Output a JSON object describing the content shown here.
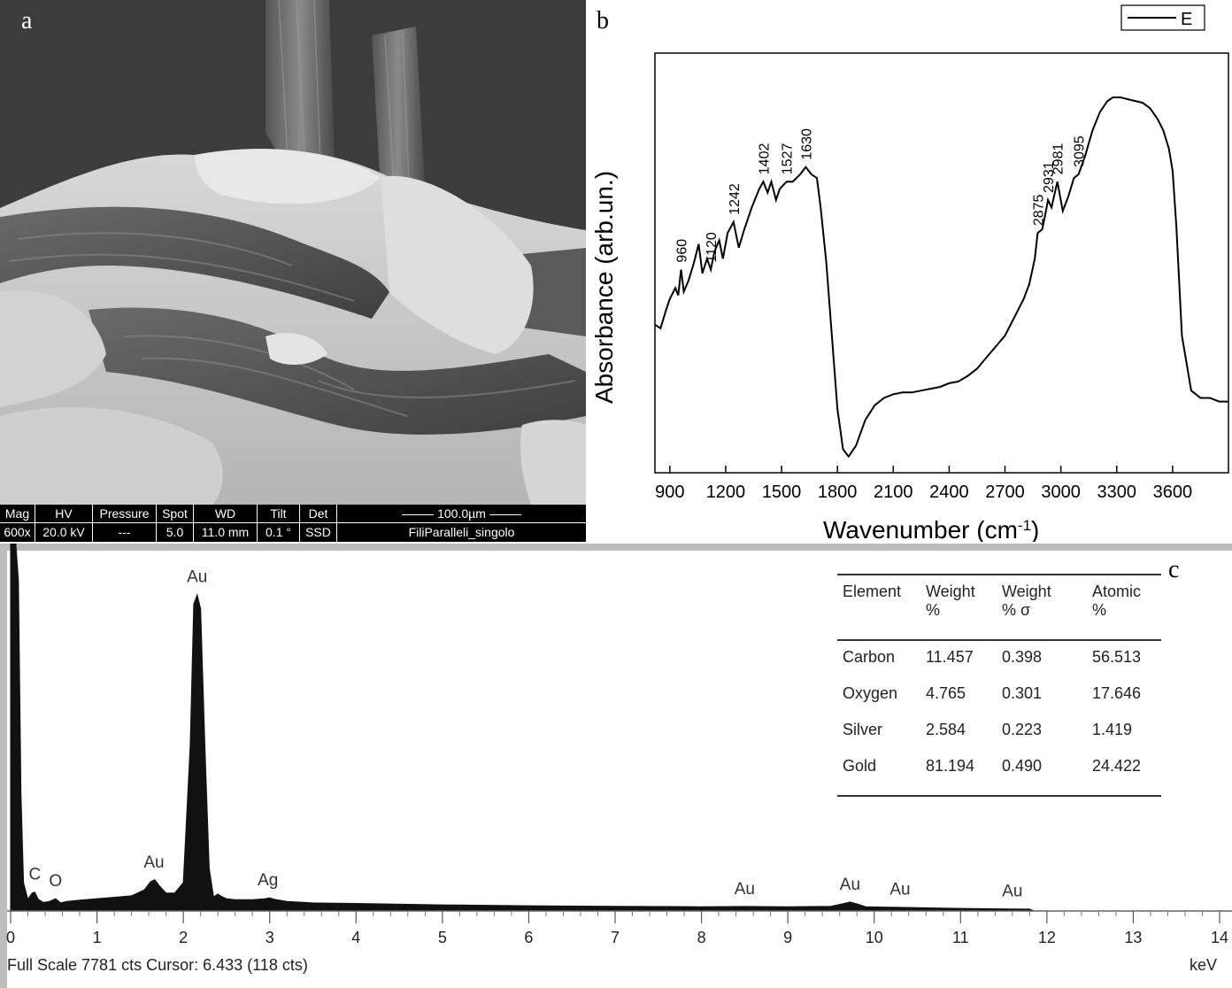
{
  "panel_a": {
    "letter": "a",
    "sem_info": {
      "headers": [
        "Mag",
        "HV",
        "Pressure",
        "Spot",
        "WD",
        "Tilt",
        "Det"
      ],
      "values": [
        "600x",
        "20.0 kV",
        "---",
        "5.0",
        "11.0 mm",
        "0.1 °",
        "SSD"
      ],
      "scale_bar": "100.0µm",
      "sample": "FiliParalleli_singolo"
    }
  },
  "panel_b": {
    "letter": "b"
  },
  "panel_c": {
    "letter": "c",
    "status": "Full Scale 7781 cts Cursor: 6.433  (118 cts)",
    "unit": "keV",
    "table": {
      "headers": [
        [
          "Element",
          ""
        ],
        [
          "Weight",
          "%"
        ],
        [
          "Weight",
          "% σ"
        ],
        [
          "Atomic",
          "%"
        ]
      ],
      "rows": [
        [
          "Carbon",
          "11.457",
          "0.398",
          "56.513"
        ],
        [
          "Oxygen",
          "4.765",
          "0.301",
          "17.646"
        ],
        [
          "Silver",
          "2.584",
          "0.223",
          "1.419"
        ],
        [
          "Gold",
          "81.194",
          "0.490",
          "24.422"
        ]
      ]
    }
  },
  "chart_data": [
    {
      "type": "line",
      "panel": "b",
      "xlabel": "Wavenumber (cm-1)",
      "xlabel_main": "Wavenumber (cm",
      "xlabel_sup": "-1",
      "xlabel_end": ")",
      "ylabel": "Absorbance (arb.un.)",
      "xlim": [
        820,
        3900
      ],
      "ylim": [
        0,
        1
      ],
      "xticks": [
        "900",
        "1200",
        "1500",
        "1800",
        "2100",
        "2400",
        "2700",
        "3000",
        "3300",
        "3600"
      ],
      "legend": "top-right",
      "series": [
        {
          "name": "E",
          "x": [
            820,
            850,
            880,
            900,
            930,
            945,
            960,
            975,
            1000,
            1030,
            1055,
            1075,
            1100,
            1120,
            1140,
            1165,
            1185,
            1210,
            1242,
            1270,
            1300,
            1340,
            1380,
            1402,
            1425,
            1445,
            1470,
            1490,
            1527,
            1560,
            1600,
            1630,
            1660,
            1690,
            1710,
            1740,
            1770,
            1800,
            1830,
            1860,
            1900,
            1950,
            2000,
            2050,
            2100,
            2150,
            2200,
            2250,
            2300,
            2350,
            2400,
            2450,
            2500,
            2550,
            2600,
            2650,
            2700,
            2750,
            2800,
            2830,
            2860,
            2875,
            2900,
            2920,
            2931,
            2950,
            2981,
            3010,
            3040,
            3070,
            3095,
            3130,
            3170,
            3210,
            3250,
            3280,
            3320,
            3360,
            3400,
            3440,
            3480,
            3520,
            3550,
            3580,
            3600,
            3620,
            3650,
            3700,
            3750,
            3800,
            3850,
            3900
          ],
          "y": [
            0.38,
            0.37,
            0.42,
            0.45,
            0.48,
            0.46,
            0.53,
            0.47,
            0.5,
            0.55,
            0.6,
            0.52,
            0.56,
            0.53,
            0.58,
            0.61,
            0.56,
            0.63,
            0.66,
            0.59,
            0.64,
            0.7,
            0.75,
            0.77,
            0.74,
            0.77,
            0.72,
            0.75,
            0.77,
            0.77,
            0.79,
            0.81,
            0.79,
            0.78,
            0.7,
            0.55,
            0.35,
            0.15,
            0.04,
            0.02,
            0.05,
            0.12,
            0.16,
            0.18,
            0.19,
            0.195,
            0.195,
            0.2,
            0.205,
            0.21,
            0.22,
            0.225,
            0.24,
            0.26,
            0.29,
            0.32,
            0.35,
            0.4,
            0.45,
            0.49,
            0.56,
            0.63,
            0.64,
            0.69,
            0.72,
            0.7,
            0.77,
            0.69,
            0.73,
            0.78,
            0.79,
            0.84,
            0.91,
            0.96,
            0.99,
            1.0,
            1.0,
            0.995,
            0.99,
            0.985,
            0.97,
            0.94,
            0.91,
            0.86,
            0.8,
            0.65,
            0.35,
            0.2,
            0.18,
            0.18,
            0.17,
            0.17
          ],
          "peak_labels": [
            {
              "x": 960,
              "label": "960"
            },
            {
              "x": 1120,
              "label": "1120"
            },
            {
              "x": 1242,
              "label": "1242"
            },
            {
              "x": 1402,
              "label": "1402"
            },
            {
              "x": 1527,
              "label": "1527"
            },
            {
              "x": 1630,
              "label": "1630"
            },
            {
              "x": 2875,
              "label": "2875"
            },
            {
              "x": 2931,
              "label": "2931"
            },
            {
              "x": 2981,
              "label": "2981"
            },
            {
              "x": 3095,
              "label": "3095"
            }
          ]
        }
      ]
    },
    {
      "type": "area",
      "panel": "c",
      "xlabel": "keV",
      "xlim": [
        0,
        14
      ],
      "ylim": [
        0,
        7781
      ],
      "xticks": [
        "0",
        "1",
        "2",
        "3",
        "4",
        "5",
        "6",
        "7",
        "8",
        "9",
        "10",
        "11",
        "12",
        "13",
        "14"
      ],
      "series": [
        {
          "name": "",
          "x": [
            0,
            0.03,
            0.06,
            0.09,
            0.12,
            0.15,
            0.2,
            0.25,
            0.28,
            0.32,
            0.38,
            0.45,
            0.52,
            0.58,
            0.65,
            0.8,
            1.0,
            1.2,
            1.4,
            1.55,
            1.62,
            1.67,
            1.72,
            1.8,
            1.9,
            2.0,
            2.08,
            2.12,
            2.16,
            2.2,
            2.25,
            2.3,
            2.35,
            2.4,
            2.45,
            2.5,
            2.6,
            2.8,
            2.95,
            3.0,
            3.05,
            3.2,
            3.5,
            4.0,
            5.0,
            6.0,
            7.0,
            8.0,
            8.5,
            9.0,
            9.5,
            9.65,
            9.72,
            9.8,
            9.9,
            10.2,
            10.5,
            11.0,
            11.5,
            11.8,
            11.85,
            14.0
          ],
          "y": [
            7781,
            7781,
            7781,
            7000,
            2500,
            600,
            250,
            380,
            400,
            250,
            180,
            200,
            260,
            170,
            200,
            230,
            260,
            290,
            320,
            450,
            620,
            660,
            540,
            380,
            380,
            600,
            3500,
            6500,
            6700,
            6400,
            3500,
            900,
            300,
            360,
            300,
            260,
            240,
            240,
            260,
            280,
            250,
            200,
            170,
            160,
            130,
            110,
            100,
            90,
            95,
            90,
            100,
            160,
            190,
            150,
            90,
            80,
            70,
            55,
            45,
            40,
            0,
            0
          ],
          "peak_labels": [
            {
              "x": 0.28,
              "label": "C"
            },
            {
              "x": 0.52,
              "label": "O"
            },
            {
              "x": 1.66,
              "label": "Au"
            },
            {
              "x": 2.16,
              "label": "Au"
            },
            {
              "x": 2.98,
              "label": "Ag"
            },
            {
              "x": 8.5,
              "label": "Au"
            },
            {
              "x": 9.72,
              "label": "Au"
            },
            {
              "x": 10.3,
              "label": "Au"
            },
            {
              "x": 11.6,
              "label": "Au"
            }
          ]
        }
      ]
    }
  ]
}
